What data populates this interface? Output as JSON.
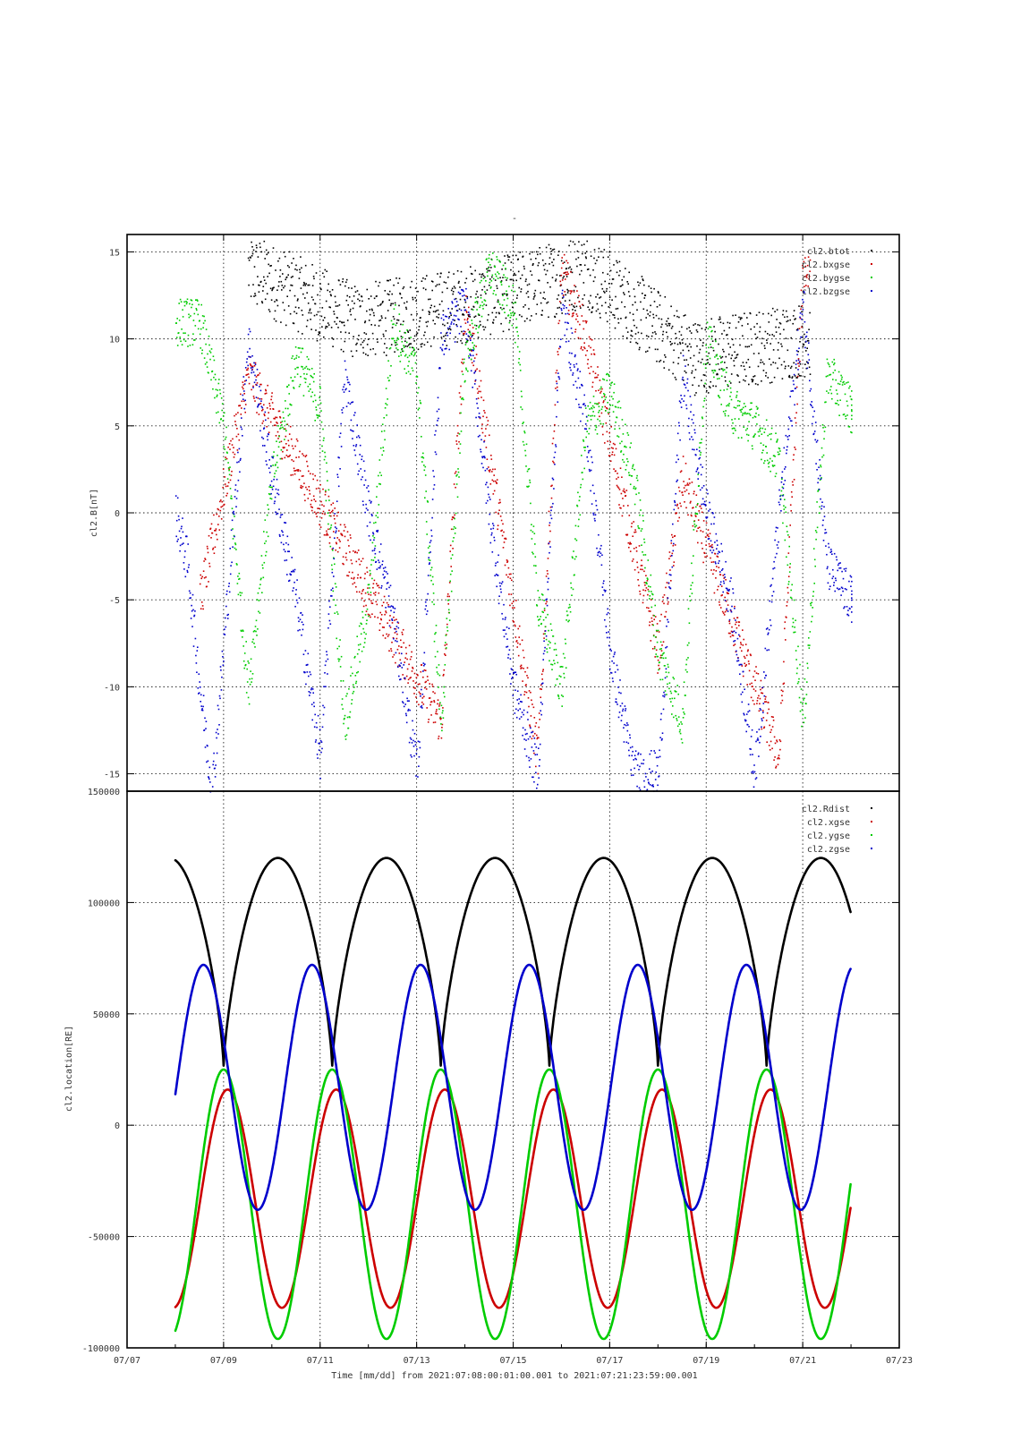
{
  "title": "-",
  "x_axis": {
    "label": "Time [mm/dd]  from 2021:07:08:00:01:00.001  to  2021:07:21:23:59:00.001",
    "ticks": [
      "07/07",
      "07/09",
      "07/11",
      "07/13",
      "07/15",
      "07/17",
      "07/19",
      "07/21",
      "07/23"
    ],
    "range_days": [
      0,
      16
    ],
    "note": "day 0 = 07/07"
  },
  "chart_data": [
    {
      "type": "scatter",
      "title": "-",
      "ylabel": "cl2.B[nT]",
      "ylim": [
        -16,
        16
      ],
      "yticks": [
        "15",
        "10",
        "5",
        "0",
        "-5",
        "-10",
        "-15"
      ],
      "ytick_values": [
        15,
        10,
        5,
        0,
        -5,
        -10,
        -15
      ],
      "xticks": [
        "07/07",
        "07/09",
        "07/11",
        "07/13",
        "07/15",
        "07/17",
        "07/19",
        "07/21",
        "07/23"
      ],
      "grid": true,
      "legend_position": "top-right",
      "series": [
        {
          "name": "cl2.btot",
          "color": "#000000",
          "x": [
            "07/09 12:00",
            "07/11 18:00",
            "07/14 00:00",
            "07/16 12:00",
            "07/18 18:00",
            "07/21 00:00"
          ],
          "y": [
            14,
            11,
            12,
            14,
            9,
            10
          ]
        },
        {
          "name": "cl2.bxgse",
          "color": "#cc0000",
          "x": [
            "07/08 12:00",
            "07/09 12:00",
            "07/11 12:00",
            "07/13 12:00",
            "07/14 00:00",
            "07/15 12:00",
            "07/16 00:00",
            "07/16 12:00",
            "07/18 00:00",
            "07/18 12:00",
            "07/20 12:00",
            "07/21 00:00"
          ],
          "y": [
            -5,
            8,
            -2,
            -12,
            12,
            -14,
            14,
            10,
            -8,
            2,
            -14,
            14
          ]
        },
        {
          "name": "cl2.bygse",
          "color": "#00cc00",
          "x": [
            "07/08 00:00",
            "07/08 12:00",
            "07/09 00:00",
            "07/09 12:00",
            "07/10 00:00",
            "07/10 12:00",
            "07/11 00:00",
            "07/11 12:00",
            "07/12 00:00",
            "07/12 12:00",
            "07/13 00:00",
            "07/13 12:00",
            "07/14 00:00",
            "07/14 12:00",
            "07/15 00:00",
            "07/15 12:00",
            "07/16 00:00",
            "07/16 12:00",
            "07/17 00:00",
            "07/17 12:00",
            "07/18 00:00",
            "07/18 12:00",
            "07/19 00:00",
            "07/19 12:00",
            "07/20 00:00",
            "07/20 12:00",
            "07/21 00:00",
            "07/21 12:00",
            "07/22 00:00"
          ],
          "y": [
            11,
            11,
            5,
            -10,
            2,
            9,
            6,
            -12,
            -5,
            11,
            8,
            -12,
            9,
            14,
            12,
            -5,
            -10,
            5,
            7,
            2,
            -8,
            -12,
            10,
            6,
            5,
            3,
            -12,
            8,
            6
          ]
        },
        {
          "name": "cl2.bzgse",
          "color": "#0000cc",
          "x": [
            "07/08 00:00",
            "07/08 06:00",
            "07/08 12:00",
            "07/08 18:00",
            "07/09 12:00",
            "07/10 00:00",
            "07/10 12:00",
            "07/11 00:00",
            "07/11 12:00",
            "07/12 00:00",
            "07/12 12:00",
            "07/13 00:00",
            "07/13 12:00",
            "07/14 00:00",
            "07/14 12:00",
            "07/15 00:00",
            "07/15 12:00",
            "07/16 00:00",
            "07/16 12:00",
            "07/17 00:00",
            "07/17 12:00",
            "07/18 00:00",
            "07/18 12:00",
            "07/19 00:00",
            "07/19 12:00",
            "07/20 00:00",
            "07/20 12:00",
            "07/21 00:00",
            "07/21 12:00",
            "07/22 00:00"
          ],
          "y": [
            0,
            -3,
            -10,
            -16,
            10,
            2,
            -5,
            -14,
            8,
            0,
            -6,
            -15,
            10,
            12,
            0,
            -10,
            -15,
            12,
            5,
            -8,
            -15,
            -15,
            8,
            0,
            -5,
            -15,
            0,
            12,
            -3,
            -5
          ]
        }
      ]
    },
    {
      "type": "line",
      "title": "",
      "ylabel": "cl2.location[RE]",
      "ylim": [
        -100000,
        150000
      ],
      "yticks": [
        "150000",
        "100000",
        "50000",
        "0",
        "-50000",
        "-100000"
      ],
      "ytick_values": [
        150000,
        100000,
        50000,
        0,
        -50000,
        -100000
      ],
      "xticks": [
        "07/07",
        "07/09",
        "07/11",
        "07/13",
        "07/15",
        "07/17",
        "07/19",
        "07/21",
        "07/23"
      ],
      "xlabel": "Time [mm/dd]  from 2021:07:08:00:01:00.001  to  2021:07:21:23:59:00.001",
      "grid": true,
      "legend_position": "top-right",
      "orbit_period_days": 2.25,
      "x_first": "07/08 00:01",
      "x_last": "07/21 23:59",
      "series": [
        {
          "name": "cl2.Rdist",
          "color": "#000000",
          "max": 120000,
          "min": 26000,
          "min_times": [
            "07/09 00:00",
            "07/11 06:00",
            "07/13 12:00",
            "07/15 18:00",
            "07/18 00:00",
            "07/20 06:00"
          ]
        },
        {
          "name": "cl2.xgse",
          "color": "#cc0000",
          "max": 16000,
          "min": -82000,
          "max_times": [
            "07/09 02:00",
            "07/11 08:00",
            "07/13 14:00",
            "07/15 20:00",
            "07/18 02:00",
            "07/20 08:00"
          ]
        },
        {
          "name": "cl2.ygse",
          "color": "#00cc00",
          "max": 25000,
          "min": -96000,
          "max_times": [
            "07/09 00:00",
            "07/11 06:00",
            "07/13 12:00",
            "07/15 18:00",
            "07/18 00:00",
            "07/20 06:00"
          ]
        },
        {
          "name": "cl2.zgse",
          "color": "#0000cc",
          "max": 72000,
          "min": -38000,
          "max_times": [
            "07/08 14:00",
            "07/10 20:00",
            "07/13 02:00",
            "07/15 08:00",
            "07/17 14:00",
            "07/19 20:00"
          ]
        }
      ]
    }
  ]
}
